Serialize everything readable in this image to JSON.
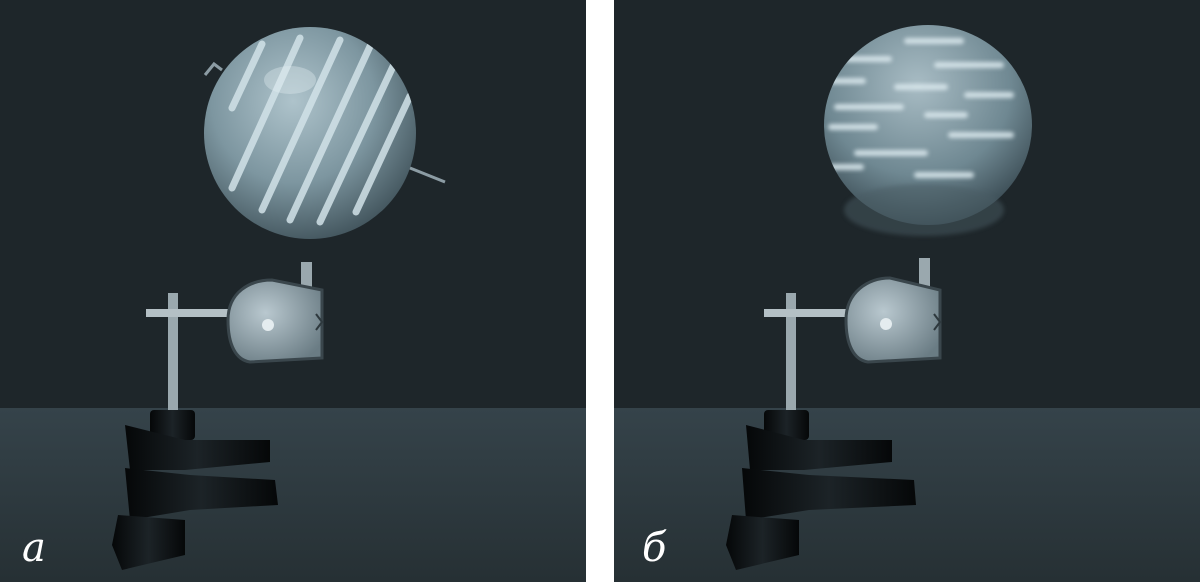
{
  "panels": [
    {
      "id": "a",
      "label": "a"
    },
    {
      "id": "b",
      "label": "б"
    }
  ],
  "colors": {
    "background_wall": "#1c2428",
    "table_surface": "#2c383c",
    "sphere": "#7f98a2",
    "sphere_highlight": "#d4e4ea",
    "stand_base": "#0c0f11",
    "metal": "#8c9ca4"
  }
}
